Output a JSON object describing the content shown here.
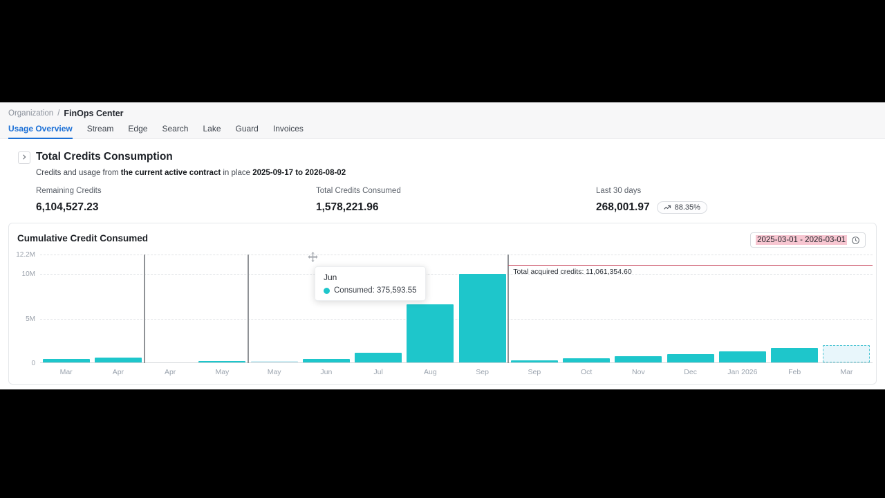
{
  "colors": {
    "accent_blue": "#1a6fd6",
    "bar_teal": "#1ec6cb",
    "bar_light": "#cdecf3",
    "forecast_fill": "#e8f6fb",
    "forecast_border": "#4cc5d3",
    "reference_red": "#c94a5f",
    "date_highlight_pink": "#f7c6d1"
  },
  "breadcrumb": {
    "parent": "Organization",
    "separator": "/",
    "current": "FinOps Center"
  },
  "tabs": {
    "items": [
      {
        "label": "Usage Overview",
        "active": true
      },
      {
        "label": "Stream",
        "active": false
      },
      {
        "label": "Edge",
        "active": false
      },
      {
        "label": "Search",
        "active": false
      },
      {
        "label": "Lake",
        "active": false
      },
      {
        "label": "Guard",
        "active": false
      },
      {
        "label": "Invoices",
        "active": false
      }
    ]
  },
  "summary": {
    "title": "Total Credits Consumption",
    "subtitle": {
      "part1": "Credits and usage from ",
      "part2": "the current active contract",
      "part3": " in place ",
      "part4": "2025-09-17 to 2026-08-02"
    },
    "metrics": [
      {
        "label": "Remaining Credits",
        "value": "6,104,527.23"
      },
      {
        "label": "Total Credits Consumed",
        "value": "1,578,221.96"
      },
      {
        "label": "Last 30 days",
        "value": "268,001.97",
        "badge": "88.35%"
      }
    ]
  },
  "chart": {
    "title": "Cumulative Credit Consumed",
    "date_range": "2025-03-01 - 2026-03-01",
    "tooltip": {
      "category": "Jun",
      "text": "Consumed: 375,593.55"
    },
    "reference_label": "Total acquired credits: 11,061,354.60"
  },
  "chart_data": {
    "type": "bar",
    "title": "Cumulative Credit Consumed",
    "categories": [
      "Mar",
      "Apr",
      "Apr",
      "May",
      "May",
      "Jun",
      "Jul",
      "Aug",
      "Sep",
      "Sep",
      "Oct",
      "Nov",
      "Dec",
      "Jan 2026",
      "Feb",
      "Mar"
    ],
    "values": [
      380000,
      520000,
      0,
      180000,
      150000,
      375593.55,
      1050000,
      6500000,
      9950000,
      230000,
      450000,
      700000,
      900000,
      1280000,
      1650000,
      1970000
    ],
    "bar_styles": [
      "normal",
      "normal",
      "normal",
      "normal",
      "light",
      "normal",
      "normal",
      "normal",
      "normal",
      "normal",
      "normal",
      "normal",
      "normal",
      "normal",
      "normal",
      "forecast"
    ],
    "series_name": "Consumed",
    "y_ticks": [
      {
        "label": "0",
        "value": 0
      },
      {
        "label": "5M",
        "value": 5000000
      },
      {
        "label": "10M",
        "value": 10000000
      },
      {
        "label": "12.2M",
        "value": 12200000
      }
    ],
    "ylim": [
      0,
      12200000
    ],
    "grid": "dashed-horizontal",
    "legend": "none",
    "separators_after_index": [
      1,
      3,
      8
    ],
    "reference_line": {
      "label": "Total acquired credits: 11,061,354.60",
      "value": 11061354.6,
      "start_after_index": 8
    },
    "tooltip_point": {
      "category": "Jun",
      "series": "Consumed",
      "value": 375593.55
    }
  }
}
